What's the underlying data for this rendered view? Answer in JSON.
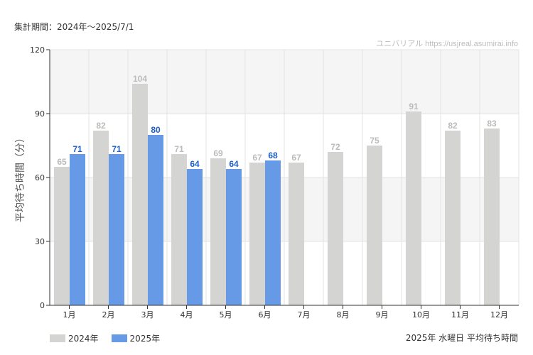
{
  "header": {
    "period": "集計期間：2024年～2025/7/1",
    "watermark": "ユニバリアル  https://usjreal.asumirai.info"
  },
  "footer": {
    "title": "2025年 水曜日 平均待ち時間"
  },
  "colors": {
    "series_2024": "#d4d4d2",
    "series_2025": "#6699e6",
    "label_2024": "#bbbbbb",
    "label_2025": "#1c5fc9",
    "band": "#f5f5f5",
    "grid": "#e3e3e3"
  },
  "chart_data": {
    "type": "bar",
    "categories": [
      "1月",
      "2月",
      "3月",
      "4月",
      "5月",
      "6月",
      "7月",
      "8月",
      "9月",
      "10月",
      "11月",
      "12月"
    ],
    "series": [
      {
        "name": "2024年",
        "values": [
          65,
          82,
          104,
          71,
          69,
          67,
          67,
          72,
          75,
          91,
          82,
          83
        ]
      },
      {
        "name": "2025年",
        "values": [
          71,
          71,
          80,
          64,
          64,
          68,
          null,
          null,
          null,
          null,
          null,
          null
        ]
      }
    ],
    "ylabel": "平均待ち時間（分）",
    "xlabel": "",
    "ylim": [
      0,
      120
    ],
    "yticks": [
      0,
      30,
      60,
      90,
      120
    ],
    "legend_position": "bottom-left",
    "grid": true
  }
}
